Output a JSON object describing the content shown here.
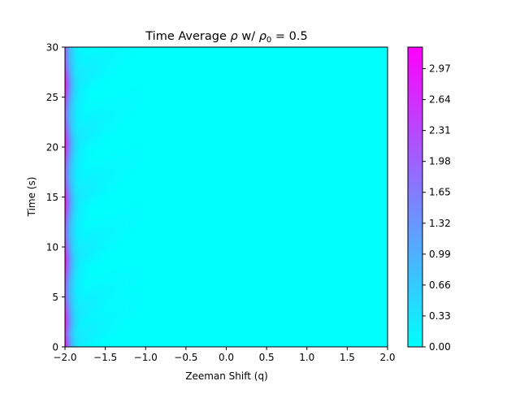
{
  "chart_data": {
    "type": "heatmap",
    "title_parts": {
      "prefix": "Time Average ",
      "rho": "ρ",
      "middle": " w/ ",
      "rho0": "ρ",
      "rho0_sub": "0",
      "suffix": " = 0.5"
    },
    "xlabel": "Zeeman Shift (q)",
    "ylabel": "Time (s)",
    "xlim": [
      -2.0,
      2.0
    ],
    "ylim": [
      0,
      30
    ],
    "x_ticks": [
      -2.0,
      -1.5,
      -1.0,
      -0.5,
      0.0,
      0.5,
      1.0,
      1.5,
      2.0
    ],
    "x_tick_labels": [
      "−2.0",
      "−1.5",
      "−1.0",
      "−0.5",
      "0.0",
      "0.5",
      "1.0",
      "1.5",
      "2.0"
    ],
    "y_ticks": [
      0,
      5,
      10,
      15,
      20,
      25,
      30
    ],
    "y_tick_labels": [
      "0",
      "5",
      "10",
      "15",
      "20",
      "25",
      "30"
    ],
    "colorbar": {
      "colormap": "cool",
      "range": [
        0.0,
        3.2
      ],
      "ticks": [
        0.0,
        0.33,
        0.66,
        0.99,
        1.32,
        1.65,
        1.98,
        2.31,
        2.64,
        2.97
      ],
      "tick_labels": [
        "0.00",
        "0.33",
        "0.66",
        "0.99",
        "1.32",
        "1.65",
        "1.98",
        "2.31",
        "2.64",
        "2.97"
      ],
      "color_low": "#00ffff",
      "color_high": "#ff00ff"
    },
    "field_description_values": {
      "background_value": 0.0,
      "edge_peak_value": 3.2,
      "edge_min_value": 2.1,
      "peak_times": [
        0,
        2.7,
        8.6,
        14.5,
        20.3,
        26.2
      ],
      "edge_decay_q_width": 0.07,
      "wing_value": 0.45,
      "wing_extent_q": 0.8
    },
    "grid": false
  }
}
